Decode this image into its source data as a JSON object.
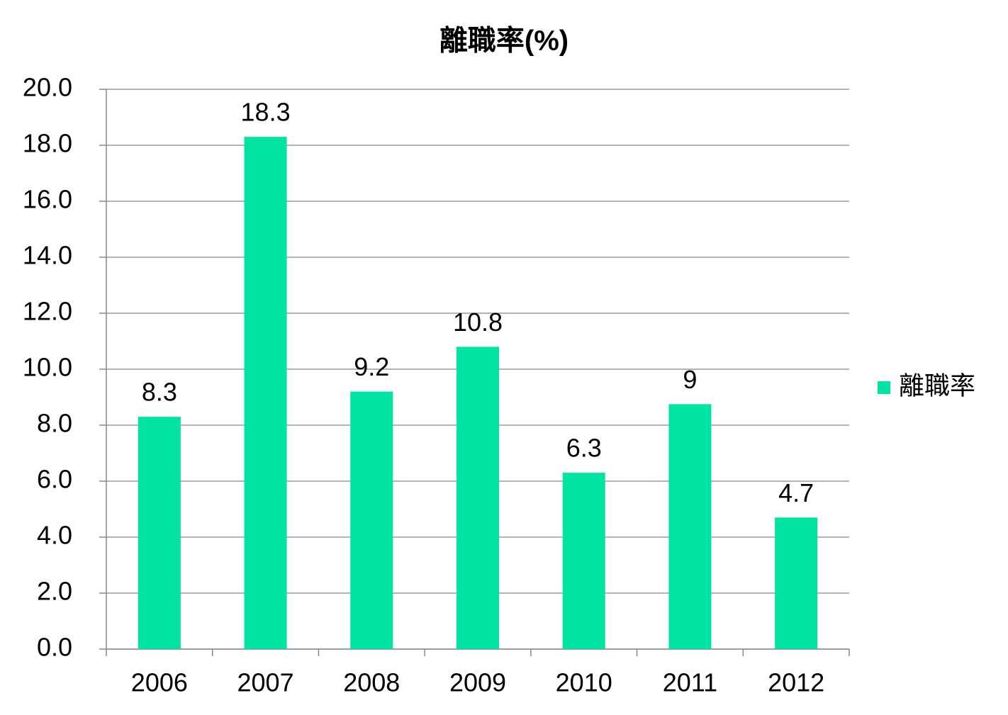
{
  "chart_data": {
    "type": "bar",
    "title": "離職率(%)",
    "categories": [
      "2006",
      "2007",
      "2008",
      "2009",
      "2010",
      "2011",
      "2012"
    ],
    "series": [
      {
        "name": "離職率",
        "color": "#00e3a3",
        "values": [
          8.3,
          18.3,
          9.2,
          10.8,
          6.3,
          8.75,
          4.7
        ],
        "value_labels": [
          "8.3",
          "18.3",
          "9.2",
          "10.8",
          "6.3",
          "9",
          "4.7"
        ]
      }
    ],
    "ylim": [
      0,
      20
    ],
    "yticks": [
      {
        "value": 0,
        "label": "0.0"
      },
      {
        "value": 2,
        "label": "2.0"
      },
      {
        "value": 4,
        "label": "4.0"
      },
      {
        "value": 6,
        "label": "6.0"
      },
      {
        "value": 8,
        "label": "8.0"
      },
      {
        "value": 10,
        "label": "10.0"
      },
      {
        "value": 12,
        "label": "12.0"
      },
      {
        "value": 14,
        "label": "14.0"
      },
      {
        "value": 16,
        "label": "16.0"
      },
      {
        "value": 18,
        "label": "18.0"
      },
      {
        "value": 20,
        "label": "20.0"
      }
    ],
    "grid": true,
    "legend": "right"
  }
}
